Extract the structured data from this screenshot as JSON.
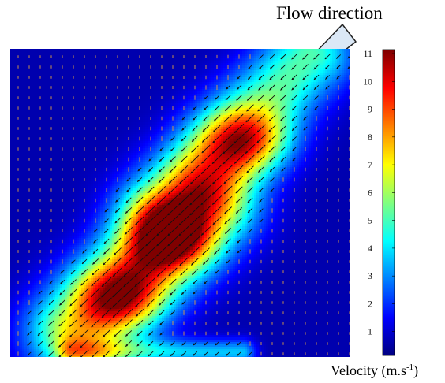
{
  "annotation": {
    "text": "Flow direction"
  },
  "colorbar": {
    "label_main": "Velocity (m.s",
    "label_sup": "-1",
    "label_tail": ")",
    "min": 0,
    "max": 11,
    "ticks": [
      1,
      2,
      3,
      4,
      5,
      6,
      7,
      8,
      9,
      10,
      11
    ],
    "colormap": "jet"
  },
  "chart_data": {
    "type": "heatmap",
    "title": "",
    "xlabel": "",
    "ylabel": "",
    "colorbar_label": "Velocity (m.s-1)",
    "value_range": [
      0,
      11
    ],
    "colorbar_ticks": [
      1,
      2,
      3,
      4,
      5,
      6,
      7,
      8,
      9,
      10,
      11
    ],
    "colormap": "jet",
    "grid": false,
    "overlay": "velocity vector arrows",
    "hotspots": [
      {
        "x": 0.69,
        "y": 0.3,
        "velocity": 10.5
      },
      {
        "x": 0.47,
        "y": 0.62,
        "velocity": 9.5
      },
      {
        "x": 0.32,
        "y": 0.8,
        "velocity": 9.0
      }
    ],
    "background_velocity": 0.5
  }
}
